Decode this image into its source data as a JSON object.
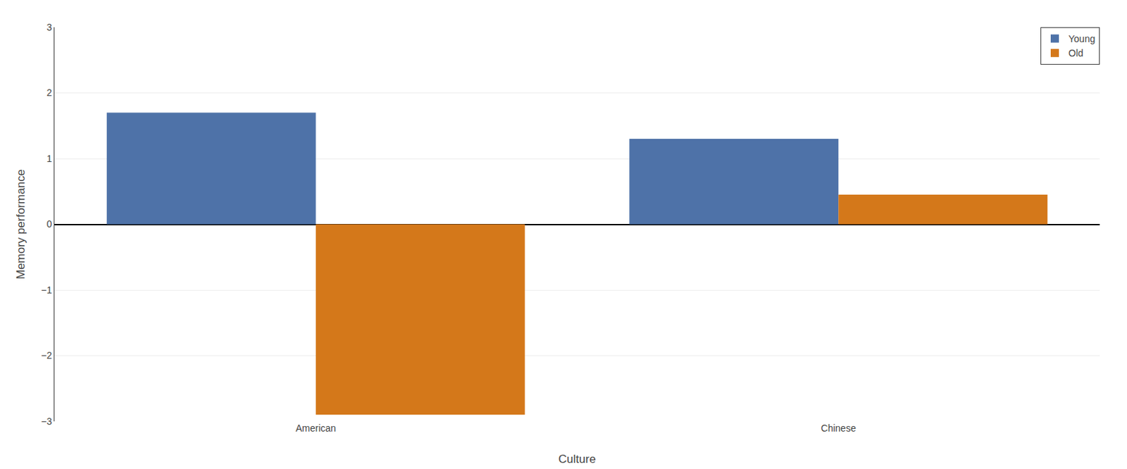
{
  "chart_data": {
    "type": "bar",
    "categories": [
      "American",
      "Chinese"
    ],
    "series": [
      {
        "name": "Young",
        "color": "#4e72a8",
        "values": [
          1.7,
          1.3
        ]
      },
      {
        "name": "Old",
        "color": "#d4781a",
        "values": [
          -2.9,
          0.45
        ]
      }
    ],
    "xlabel": "Culture",
    "ylabel": "Memory performance",
    "ylim": [
      -3,
      3
    ],
    "yticks": [
      {
        "value": -3,
        "label": "−3"
      },
      {
        "value": -2,
        "label": "−2"
      },
      {
        "value": -1,
        "label": "−1"
      },
      0,
      1,
      2,
      3
    ],
    "grid": true,
    "legend": "upper right"
  }
}
